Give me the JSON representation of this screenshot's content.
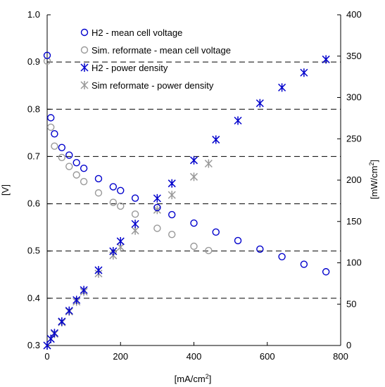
{
  "chart_data": {
    "type": "scatter",
    "xlabel_main": "[mA/cm",
    "xlabel_sup": "2",
    "xlabel_end": "]",
    "ylabel_left": "[V]",
    "ylabel_right_main": "[mW/cm",
    "ylabel_right_sup": "2",
    "ylabel_right_end": "]",
    "xlim": [
      0,
      800
    ],
    "ylim_left": [
      0.3,
      1.0
    ],
    "ylim_right": [
      0,
      400
    ],
    "x_ticks": [
      0,
      200,
      400,
      600,
      800
    ],
    "y_left_ticks": [
      "0.3",
      "0.4",
      "0.5",
      "0.6",
      "0.7",
      "0.8",
      "0.9",
      "1.0"
    ],
    "y_right_ticks": [
      "0",
      "50",
      "100",
      "150",
      "200",
      "250",
      "300",
      "350",
      "400"
    ],
    "grid": "dashed horizontal at left-axis ticks",
    "legend_position": "top-left",
    "colors": {
      "blue": "#0000cc",
      "gray": "#999999"
    },
    "series": [
      {
        "name": "H2 - mean cell voltage",
        "axis": "left",
        "marker": "circle",
        "color": "#0000cc",
        "x": [
          0,
          10,
          20,
          40,
          60,
          80,
          100,
          140,
          180,
          200,
          240,
          300,
          340,
          400,
          460,
          520,
          580,
          640,
          700,
          760
        ],
        "y": [
          0.914,
          0.782,
          0.748,
          0.719,
          0.703,
          0.687,
          0.675,
          0.653,
          0.636,
          0.628,
          0.612,
          0.592,
          0.577,
          0.559,
          0.54,
          0.522,
          0.504,
          0.488,
          0.472,
          0.456
        ]
      },
      {
        "name": "Sim. reformate - mean cell voltage",
        "axis": "left",
        "marker": "circle",
        "color": "#999999",
        "x": [
          0,
          10,
          20,
          40,
          60,
          80,
          100,
          140,
          180,
          200,
          240,
          300,
          340,
          400,
          440
        ],
        "y": [
          0.902,
          0.762,
          0.722,
          0.698,
          0.679,
          0.661,
          0.647,
          0.623,
          0.603,
          0.595,
          0.578,
          0.548,
          0.535,
          0.51,
          0.501
        ]
      },
      {
        "name": "H2 - power density",
        "axis": "right",
        "marker": "asterisk",
        "color": "#0000cc",
        "x": [
          0,
          10,
          20,
          40,
          60,
          80,
          100,
          140,
          180,
          200,
          240,
          300,
          340,
          400,
          460,
          520,
          580,
          640,
          700,
          760
        ],
        "y": [
          0,
          8,
          15,
          29,
          42,
          55,
          67,
          91,
          114,
          126,
          147,
          178,
          196,
          224,
          249,
          272,
          293,
          312,
          330,
          346
        ]
      },
      {
        "name": "Sim reformate - power density",
        "axis": "right",
        "marker": "asterisk",
        "color": "#999999",
        "x": [
          0,
          10,
          20,
          40,
          60,
          80,
          100,
          140,
          180,
          200,
          240,
          300,
          340,
          400,
          440
        ],
        "y": [
          0,
          8,
          14,
          28,
          41,
          53,
          65,
          87,
          109,
          119,
          139,
          164,
          182,
          204,
          220
        ]
      }
    ]
  }
}
